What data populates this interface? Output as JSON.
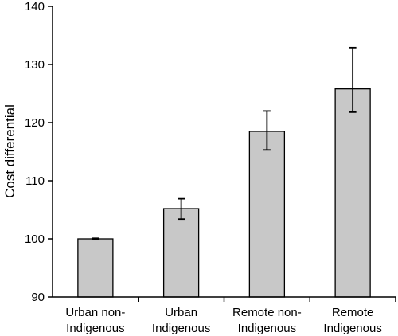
{
  "chart_data": {
    "type": "bar",
    "categories": [
      [
        "Urban non-",
        "Indigenous"
      ],
      [
        "Urban",
        "Indigenous"
      ],
      [
        "Remote non-",
        "Indigenous"
      ],
      [
        "Remote",
        "Indigenous"
      ]
    ],
    "values": [
      100.0,
      105.2,
      118.5,
      125.8
    ],
    "error_low": [
      99.9,
      103.4,
      115.3,
      121.8
    ],
    "error_high": [
      100.1,
      106.9,
      122.0,
      132.9
    ],
    "xlabel": "",
    "ylabel": "Cost differential",
    "ylim": [
      90,
      140
    ],
    "yticks": [
      90,
      100,
      110,
      120,
      130,
      140
    ],
    "bar_color": "#c8c8c8",
    "bar_edge_color": "#000000",
    "grid": false
  }
}
